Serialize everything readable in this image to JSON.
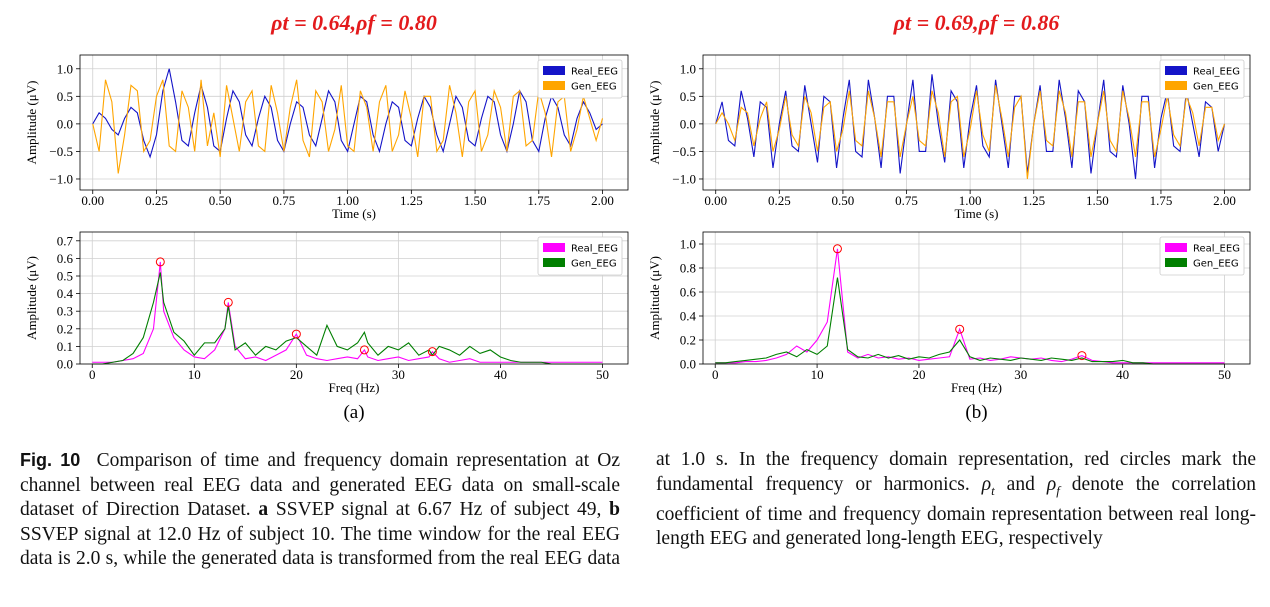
{
  "chart_data": [
    {
      "type": "line",
      "title": "ρt = 0.64,ρf = 0.80",
      "x_label": "Time (s)",
      "y_label": "Amplitude (μV)",
      "x": [
        0,
        0.025,
        0.05,
        0.075,
        0.1,
        0.125,
        0.15,
        0.175,
        0.2,
        0.225,
        0.25,
        0.275,
        0.3,
        0.325,
        0.35,
        0.375,
        0.4,
        0.425,
        0.45,
        0.475,
        0.5,
        0.525,
        0.55,
        0.575,
        0.6,
        0.625,
        0.65,
        0.675,
        0.7,
        0.725,
        0.75,
        0.775,
        0.8,
        0.825,
        0.85,
        0.875,
        0.9,
        0.925,
        0.95,
        0.975,
        1,
        1.025,
        1.05,
        1.075,
        1.1,
        1.125,
        1.15,
        1.175,
        1.2,
        1.225,
        1.25,
        1.275,
        1.3,
        1.325,
        1.35,
        1.375,
        1.4,
        1.425,
        1.45,
        1.475,
        1.5,
        1.525,
        1.55,
        1.575,
        1.6,
        1.625,
        1.65,
        1.675,
        1.7,
        1.725,
        1.75,
        1.775,
        1.8,
        1.825,
        1.85,
        1.875,
        1.9,
        1.925,
        1.95,
        1.975,
        2
      ],
      "series": [
        {
          "name": "Real_EEG",
          "color": "#1414c8",
          "values": [
            0.0,
            0.2,
            0.1,
            -0.1,
            -0.2,
            0.1,
            0.3,
            0.2,
            -0.3,
            -0.6,
            -0.2,
            0.6,
            1.0,
            0.4,
            -0.3,
            -0.4,
            0.2,
            0.7,
            0.3,
            -0.4,
            -0.5,
            0.1,
            0.6,
            0.4,
            -0.2,
            -0.4,
            0.1,
            0.5,
            0.3,
            -0.3,
            -0.5,
            0.0,
            0.4,
            0.3,
            -0.2,
            -0.4,
            0.1,
            0.6,
            0.4,
            -0.3,
            -0.5,
            0.0,
            0.5,
            0.4,
            -0.2,
            -0.5,
            0.0,
            0.4,
            0.3,
            -0.3,
            -0.4,
            0.1,
            0.5,
            0.3,
            -0.2,
            -0.5,
            0.0,
            0.5,
            0.3,
            -0.3,
            -0.4,
            0.1,
            0.5,
            0.4,
            -0.2,
            -0.5,
            0.0,
            0.6,
            0.4,
            -0.3,
            -0.5,
            0.1,
            0.5,
            0.3,
            -0.2,
            -0.4,
            0.1,
            0.4,
            0.2,
            -0.1,
            0.0
          ]
        },
        {
          "name": "Gen_EEG",
          "color": "#ffa500",
          "values": [
            0.0,
            -0.5,
            0.8,
            0.4,
            -0.9,
            -0.2,
            0.7,
            0.6,
            -0.5,
            -0.3,
            0.5,
            0.8,
            -0.4,
            -0.5,
            0.6,
            0.3,
            -0.5,
            0.8,
            -0.4,
            0.2,
            -0.6,
            0.7,
            0.1,
            -0.5,
            0.4,
            0.6,
            -0.4,
            -0.5,
            0.7,
            0.2,
            -0.5,
            0.3,
            0.8,
            -0.3,
            -0.6,
            0.6,
            0.4,
            -0.5,
            -0.1,
            0.7,
            -0.4,
            -0.5,
            0.6,
            0.3,
            -0.5,
            0.4,
            0.7,
            -0.5,
            -0.2,
            0.6,
            0.1,
            -0.6,
            0.5,
            0.5,
            -0.5,
            -0.3,
            0.7,
            0.2,
            -0.6,
            0.4,
            0.6,
            -0.5,
            -0.2,
            0.6,
            0.3,
            -0.5,
            0.5,
            0.6,
            -0.4,
            -0.3,
            0.6,
            0.2,
            -0.6,
            0.4,
            0.5,
            -0.5,
            -0.1,
            0.5,
            0.1,
            -0.3,
            0.1
          ]
        }
      ],
      "xlim": [
        -0.05,
        2.1
      ],
      "ylim": [
        -1.2,
        1.25
      ],
      "xticks": [
        {
          "value": 0,
          "label": "0.00"
        },
        0.25,
        {
          "value": 0.5,
          "label": "0.50"
        },
        0.75,
        {
          "value": 1,
          "label": "1.00"
        },
        1.25,
        {
          "value": 1.5,
          "label": "1.50"
        },
        1.75,
        {
          "value": 2,
          "label": "2.00"
        }
      ],
      "yticks": [
        {
          "value": -1,
          "label": "−1.0"
        },
        {
          "value": -0.5,
          "label": "−0.5"
        },
        {
          "value": 0,
          "label": "0.0"
        },
        0.5,
        {
          "value": 1,
          "label": "1.0"
        }
      ],
      "grid": true,
      "legend": "upper right"
    },
    {
      "type": "line",
      "x_label": "Freq (Hz)",
      "y_label": "Amplitude (μV)",
      "panel_label": "(a)",
      "x": [
        0,
        1,
        2,
        3,
        4,
        5,
        6,
        6.67,
        7,
        8,
        9,
        10,
        11,
        12,
        13,
        13.33,
        14,
        15,
        16,
        17,
        18,
        19,
        20,
        21,
        22,
        23,
        24,
        25,
        26,
        26.67,
        27,
        28,
        29,
        30,
        31,
        32,
        33,
        33.33,
        34,
        35,
        36,
        37,
        38,
        39,
        40,
        41,
        42,
        43,
        44,
        45,
        46,
        47,
        48,
        49,
        50
      ],
      "series": [
        {
          "name": "Real_EEG",
          "color": "#ff00ff",
          "values": [
            0.01,
            0.01,
            0.01,
            0.02,
            0.03,
            0.06,
            0.2,
            0.58,
            0.3,
            0.15,
            0.08,
            0.04,
            0.03,
            0.08,
            0.2,
            0.35,
            0.1,
            0.03,
            0.04,
            0.02,
            0.05,
            0.08,
            0.17,
            0.05,
            0.03,
            0.02,
            0.03,
            0.04,
            0.03,
            0.08,
            0.04,
            0.02,
            0.03,
            0.04,
            0.02,
            0.03,
            0.04,
            0.07,
            0.03,
            0.01,
            0.02,
            0.03,
            0.01,
            0.01,
            0.01,
            0.01,
            0.01,
            0.01,
            0.01,
            0.01,
            0.01,
            0.01,
            0.01,
            0.01,
            0.01
          ]
        },
        {
          "name": "Gen_EEG",
          "color": "#007f00",
          "values": [
            0.0,
            0.0,
            0.01,
            0.02,
            0.06,
            0.15,
            0.35,
            0.52,
            0.35,
            0.18,
            0.13,
            0.05,
            0.12,
            0.12,
            0.2,
            0.33,
            0.08,
            0.12,
            0.05,
            0.1,
            0.08,
            0.13,
            0.15,
            0.1,
            0.05,
            0.22,
            0.1,
            0.08,
            0.12,
            0.18,
            0.12,
            0.05,
            0.1,
            0.08,
            0.12,
            0.05,
            0.08,
            0.05,
            0.1,
            0.08,
            0.05,
            0.1,
            0.06,
            0.08,
            0.04,
            0.02,
            0.01,
            0.01,
            0.01,
            0.0,
            0.0,
            0.0,
            0.0,
            0.0,
            0.0
          ]
        }
      ],
      "markers": {
        "color": "#ff0000",
        "x": [
          6.67,
          13.33,
          20,
          26.67,
          33.33
        ],
        "values": [
          0.58,
          0.35,
          0.17,
          0.08,
          0.07
        ]
      },
      "xlim": [
        -1.2,
        52.5
      ],
      "ylim": [
        0,
        0.75
      ],
      "xticks": [
        0,
        10,
        20,
        30,
        40,
        50
      ],
      "yticks": [
        {
          "value": 0,
          "label": "0.0"
        },
        0.1,
        0.2,
        0.3,
        0.4,
        0.5,
        0.6,
        0.7
      ],
      "grid": true,
      "legend": "upper right"
    },
    {
      "type": "line",
      "title": "ρt = 0.69,ρf = 0.86",
      "x_label": "Time (s)",
      "y_label": "Amplitude (μV)",
      "x": [
        0,
        0.025,
        0.05,
        0.075,
        0.1,
        0.125,
        0.15,
        0.175,
        0.2,
        0.225,
        0.25,
        0.275,
        0.3,
        0.325,
        0.35,
        0.375,
        0.4,
        0.425,
        0.45,
        0.475,
        0.5,
        0.525,
        0.55,
        0.575,
        0.6,
        0.625,
        0.65,
        0.675,
        0.7,
        0.725,
        0.75,
        0.775,
        0.8,
        0.825,
        0.85,
        0.875,
        0.9,
        0.925,
        0.95,
        0.975,
        1,
        1.025,
        1.05,
        1.075,
        1.1,
        1.125,
        1.15,
        1.175,
        1.2,
        1.225,
        1.25,
        1.275,
        1.3,
        1.325,
        1.35,
        1.375,
        1.4,
        1.425,
        1.45,
        1.475,
        1.5,
        1.525,
        1.55,
        1.575,
        1.6,
        1.625,
        1.65,
        1.675,
        1.7,
        1.725,
        1.75,
        1.775,
        1.8,
        1.825,
        1.85,
        1.875,
        1.9,
        1.925,
        1.95,
        1.975,
        2
      ],
      "series": [
        {
          "name": "Real_EEG",
          "color": "#1414c8",
          "values": [
            0.0,
            0.4,
            -0.3,
            -0.4,
            0.6,
            0.1,
            -0.6,
            0.4,
            0.3,
            -0.8,
            0.0,
            0.6,
            -0.4,
            -0.5,
            0.7,
            0.0,
            -0.7,
            0.5,
            0.4,
            -0.8,
            0.1,
            0.8,
            -0.5,
            -0.6,
            0.8,
            0.1,
            -0.8,
            0.5,
            0.5,
            -0.9,
            0.0,
            0.8,
            -0.5,
            -0.5,
            0.9,
            0.0,
            -0.7,
            0.6,
            0.4,
            -0.8,
            0.1,
            0.7,
            -0.4,
            -0.6,
            0.8,
            0.0,
            -0.8,
            0.5,
            0.5,
            -0.9,
            0.0,
            0.7,
            -0.5,
            -0.5,
            0.8,
            0.1,
            -0.8,
            0.6,
            0.4,
            -0.9,
            0.0,
            0.8,
            -0.5,
            -0.6,
            0.7,
            0.0,
            -1.0,
            0.5,
            0.5,
            -0.8,
            0.1,
            0.6,
            -0.4,
            -0.5,
            0.6,
            0.0,
            -0.6,
            0.4,
            0.3,
            -0.5,
            0.0
          ]
        },
        {
          "name": "Gen_EEG",
          "color": "#ffa500",
          "values": [
            0.0,
            0.2,
            0.0,
            -0.3,
            0.3,
            0.2,
            -0.4,
            0.1,
            0.4,
            -0.5,
            -0.1,
            0.5,
            -0.2,
            -0.4,
            0.5,
            0.2,
            -0.5,
            0.3,
            0.4,
            -0.5,
            -0.1,
            0.6,
            -0.3,
            -0.4,
            0.6,
            0.1,
            -0.6,
            0.4,
            0.4,
            -0.6,
            0.0,
            0.5,
            -0.3,
            -0.4,
            0.6,
            0.2,
            -0.6,
            0.4,
            0.5,
            -0.6,
            -0.1,
            0.6,
            -0.2,
            -0.5,
            0.7,
            0.1,
            -0.6,
            0.3,
            0.5,
            -1.0,
            0.0,
            0.6,
            -0.3,
            -0.4,
            0.6,
            0.2,
            -0.6,
            0.4,
            0.4,
            -0.6,
            0.0,
            0.6,
            -0.3,
            -0.5,
            0.6,
            0.1,
            -0.6,
            0.4,
            0.4,
            -0.6,
            -0.1,
            0.5,
            -0.2,
            -0.4,
            0.5,
            0.2,
            -0.4,
            0.3,
            0.3,
            -0.3,
            0.0
          ]
        }
      ],
      "xlim": [
        -0.05,
        2.1
      ],
      "ylim": [
        -1.2,
        1.25
      ],
      "xticks": [
        {
          "value": 0,
          "label": "0.00"
        },
        0.25,
        {
          "value": 0.5,
          "label": "0.50"
        },
        0.75,
        {
          "value": 1,
          "label": "1.00"
        },
        1.25,
        {
          "value": 1.5,
          "label": "1.50"
        },
        1.75,
        {
          "value": 2,
          "label": "2.00"
        }
      ],
      "yticks": [
        {
          "value": -1,
          "label": "−1.0"
        },
        {
          "value": -0.5,
          "label": "−0.5"
        },
        {
          "value": 0,
          "label": "0.0"
        },
        0.5,
        {
          "value": 1,
          "label": "1.0"
        }
      ],
      "grid": true,
      "legend": "upper right"
    },
    {
      "type": "line",
      "x_label": "Freq (Hz)",
      "y_label": "Amplitude (μV)",
      "panel_label": "(b)",
      "x": [
        0,
        1,
        2,
        3,
        4,
        5,
        6,
        7,
        8,
        9,
        10,
        11,
        12,
        13,
        14,
        15,
        16,
        17,
        18,
        19,
        20,
        21,
        22,
        23,
        24,
        25,
        26,
        27,
        28,
        29,
        30,
        31,
        32,
        33,
        34,
        35,
        36,
        37,
        38,
        39,
        40,
        41,
        42,
        43,
        44,
        45,
        46,
        47,
        48,
        49,
        50
      ],
      "series": [
        {
          "name": "Real_EEG",
          "color": "#ff00ff",
          "values": [
            0.01,
            0.01,
            0.01,
            0.02,
            0.02,
            0.03,
            0.05,
            0.08,
            0.15,
            0.1,
            0.2,
            0.35,
            0.96,
            0.1,
            0.05,
            0.08,
            0.05,
            0.06,
            0.04,
            0.05,
            0.03,
            0.04,
            0.05,
            0.06,
            0.29,
            0.04,
            0.05,
            0.03,
            0.04,
            0.06,
            0.05,
            0.04,
            0.05,
            0.03,
            0.02,
            0.04,
            0.07,
            0.03,
            0.02,
            0.01,
            0.01,
            0.01,
            0.01,
            0.01,
            0.01,
            0.01,
            0.01,
            0.01,
            0.01,
            0.01,
            0.01
          ]
        },
        {
          "name": "Gen_EEG",
          "color": "#007f00",
          "values": [
            0.01,
            0.01,
            0.02,
            0.03,
            0.04,
            0.05,
            0.08,
            0.1,
            0.06,
            0.12,
            0.08,
            0.15,
            0.72,
            0.12,
            0.06,
            0.05,
            0.08,
            0.05,
            0.07,
            0.04,
            0.06,
            0.05,
            0.08,
            0.1,
            0.2,
            0.06,
            0.03,
            0.05,
            0.04,
            0.03,
            0.05,
            0.04,
            0.03,
            0.05,
            0.04,
            0.03,
            0.05,
            0.02,
            0.02,
            0.02,
            0.03,
            0.01,
            0.01,
            0.0,
            0.0,
            0.0,
            0.0,
            0.0,
            0.0,
            0.0,
            0.0
          ]
        }
      ],
      "markers": {
        "color": "#ff0000",
        "x": [
          12,
          24,
          36
        ],
        "values": [
          0.96,
          0.29,
          0.07
        ]
      },
      "xlim": [
        -1.2,
        52.5
      ],
      "ylim": [
        0,
        1.1
      ],
      "xticks": [
        0,
        10,
        20,
        30,
        40,
        50
      ],
      "yticks": [
        {
          "value": 0,
          "label": "0.0"
        },
        0.2,
        0.4,
        0.6,
        0.8,
        {
          "value": 1,
          "label": "1.0"
        }
      ],
      "grid": true,
      "legend": "upper right"
    }
  ],
  "caption": {
    "label": "Fig. 10",
    "segments": [
      "Comparison of time and frequency domain representation at Oz channel between real EEG data and generated EEG data on small-scale dataset of Direction Dataset. ",
      "a",
      " SSVEP signal at 6.67 Hz of subject 49, ",
      "b",
      " SSVEP signal at 12.0 Hz of subject 10. The time window for the real EEG data is 2.0 s, while the generated data is transformed from the real EEG data at 1.0 s. In the frequency domain representation, red circles mark the fundamental frequency or harmonics. ",
      "ρ",
      "t",
      " and ",
      "ρ",
      "f",
      " denote the correlation coefficient of time and frequency domain representation between real long-length EEG and generated long-length EEG, respectively"
    ]
  }
}
